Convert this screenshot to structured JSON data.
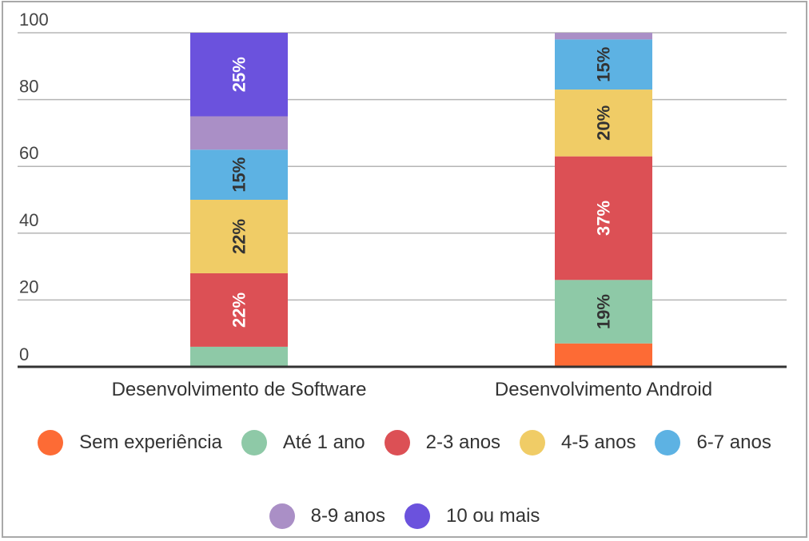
{
  "chart_data": {
    "type": "bar",
    "stacked": true,
    "title": "",
    "xlabel": "",
    "ylabel": "",
    "ylim": [
      0,
      100
    ],
    "yticks": [
      "0",
      "20",
      "40",
      "60",
      "80",
      "100"
    ],
    "grid": true,
    "legend_position": "bottom",
    "categories": [
      "Desenvolvimento de Software",
      "Desenvolvimento Android"
    ],
    "series": [
      {
        "name": "Sem experiência",
        "color": "#fd6b35",
        "values": [
          0,
          7
        ],
        "labels": [
          "",
          ""
        ],
        "label_color": "#ffffff"
      },
      {
        "name": "Até 1 ano",
        "color": "#8ec9a7",
        "values": [
          6,
          19
        ],
        "labels": [
          "",
          "19%"
        ],
        "label_color": "#333333"
      },
      {
        "name": "2-3 anos",
        "color": "#dc5055",
        "values": [
          22,
          37
        ],
        "labels": [
          "22%",
          "37%"
        ],
        "label_color": "#ffffff"
      },
      {
        "name": "4-5 anos",
        "color": "#f0cc66",
        "values": [
          22,
          20
        ],
        "labels": [
          "22%",
          "20%"
        ],
        "label_color": "#333333"
      },
      {
        "name": "6-7 anos",
        "color": "#5db2e3",
        "values": [
          15,
          15
        ],
        "labels": [
          "15%",
          "15%"
        ],
        "label_color": "#333333"
      },
      {
        "name": "8-9 anos",
        "color": "#aa8fc6",
        "values": [
          10,
          2
        ],
        "labels": [
          "",
          ""
        ],
        "label_color": "#ffffff"
      },
      {
        "name": "10 ou mais",
        "color": "#6b52dd",
        "values": [
          25,
          0
        ],
        "labels": [
          "25%",
          ""
        ],
        "label_color": "#ffffff"
      }
    ]
  }
}
